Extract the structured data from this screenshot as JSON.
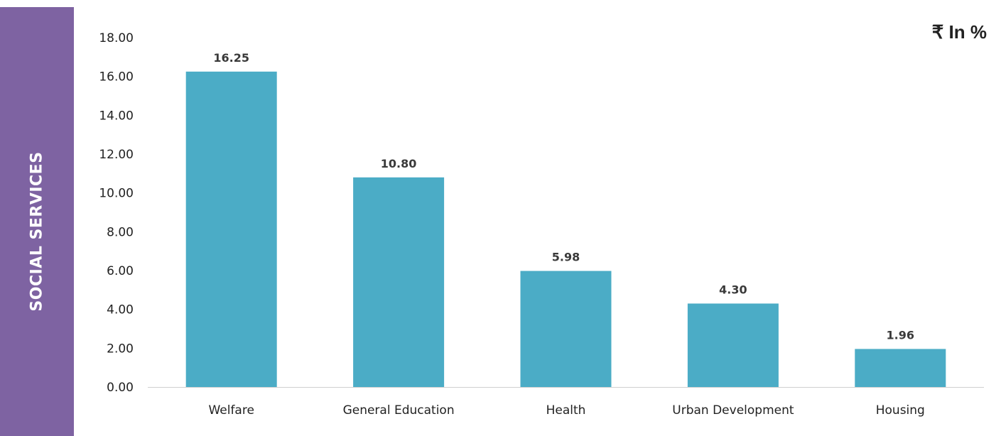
{
  "side_band": {
    "label": "SOCIAL SERVICES",
    "color": "#7e63a2"
  },
  "unit_label": "₹ In %",
  "chart_data": {
    "type": "bar",
    "categories": [
      "Welfare",
      "General Education",
      "Health",
      "Urban Development",
      "Housing"
    ],
    "values": [
      16.25,
      10.8,
      5.98,
      4.3,
      1.96
    ],
    "data_labels": [
      "16.25",
      "10.80",
      "5.98",
      "4.30",
      "1.96"
    ],
    "ylim": [
      0,
      18
    ],
    "yticks": [
      "0.00",
      "2.00",
      "4.00",
      "6.00",
      "8.00",
      "10.00",
      "12.00",
      "14.00",
      "16.00",
      "18.00"
    ],
    "bar_color": "#4bacc6",
    "grid": false,
    "legend": "none"
  }
}
